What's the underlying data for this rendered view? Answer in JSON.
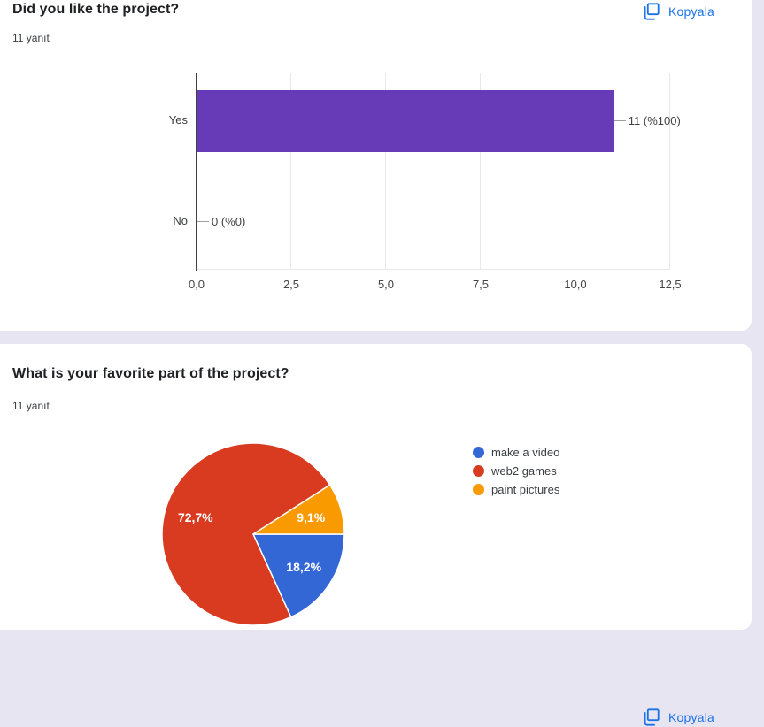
{
  "accent_color": "#1a73e8",
  "cards": [
    {
      "title": "Did you like the project?",
      "responses": "11 yanıt",
      "copy_label": "Kopyala",
      "chart_data": {
        "type": "bar",
        "orientation": "horizontal",
        "categories": [
          "Yes",
          "No"
        ],
        "values": [
          11,
          0
        ],
        "annotations": [
          "11 (%100)",
          "0 (%0)"
        ],
        "bar_color": "#673ab7",
        "x_ticks": [
          "0,0",
          "2,5",
          "5,0",
          "7,5",
          "10,0",
          "12,5"
        ],
        "x_tick_values": [
          0,
          2.5,
          5,
          7.5,
          10,
          12.5
        ],
        "xlim": [
          0,
          12.5
        ],
        "grid": true
      }
    },
    {
      "title": "What is your favorite part of the project?",
      "responses": "11 yanıt",
      "copy_label": "Kopyala",
      "chart_data": {
        "type": "pie",
        "start_angle_deg": 0,
        "legend_position": "right",
        "slices": [
          {
            "label": "make a video",
            "percent": 18.2,
            "display": "18,2%",
            "color": "#3467d6"
          },
          {
            "label": "web2 games",
            "percent": 72.7,
            "display": "72,7%",
            "color": "#d93b20"
          },
          {
            "label": "paint pictures",
            "percent": 9.1,
            "display": "9,1%",
            "color": "#f99b00"
          }
        ]
      }
    }
  ]
}
